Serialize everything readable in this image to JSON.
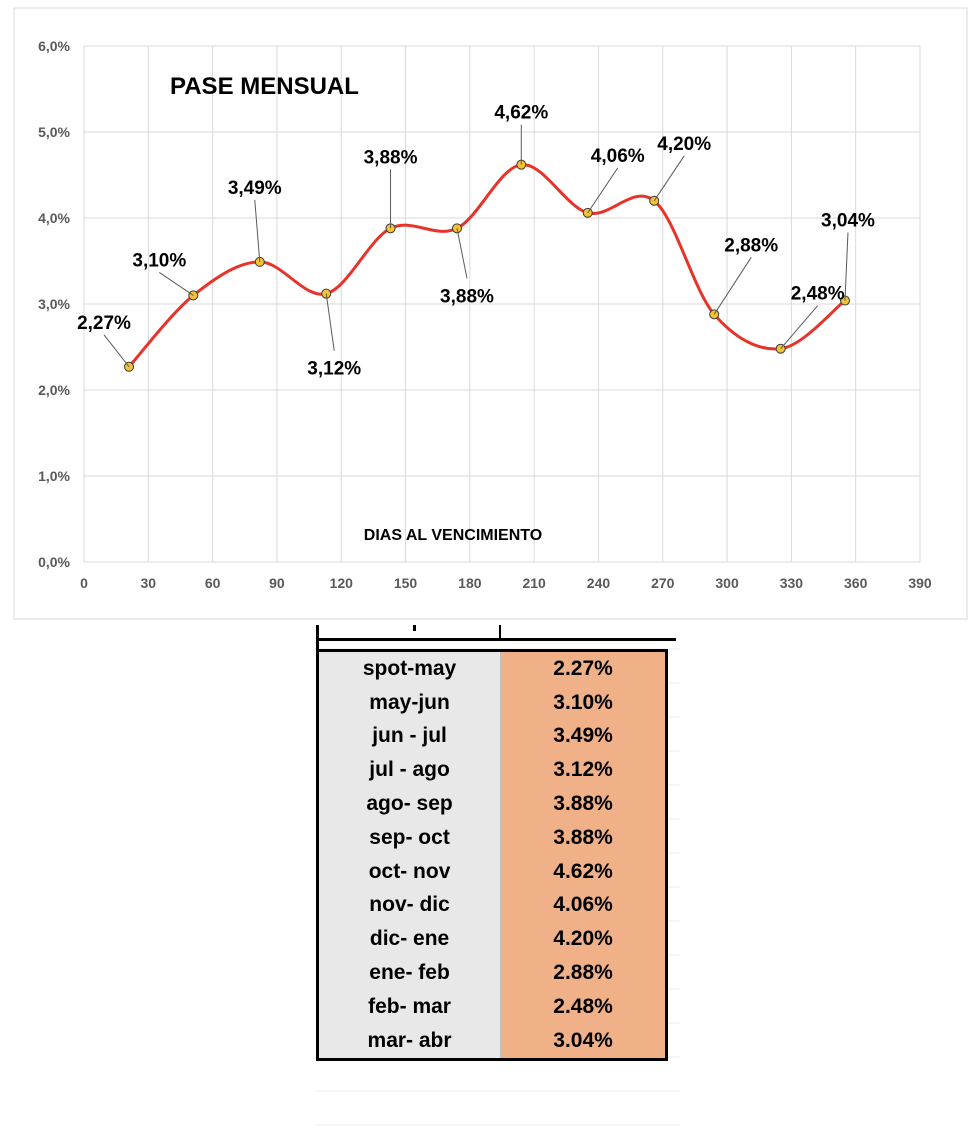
{
  "chart_data": {
    "type": "line",
    "title": "PASE MENSUAL",
    "xlabel": "DIAS AL VENCIMIENTO",
    "ylabel": "",
    "xlim": [
      0,
      390
    ],
    "ylim": [
      0,
      6
    ],
    "x_ticks": [
      0,
      30,
      60,
      90,
      120,
      150,
      180,
      210,
      240,
      270,
      300,
      330,
      360,
      390
    ],
    "y_ticks": [
      0,
      1,
      2,
      3,
      4,
      5,
      6
    ],
    "x_tick_labels": [
      "0",
      "30",
      "60",
      "90",
      "120",
      "150",
      "180",
      "210",
      "240",
      "270",
      "300",
      "330",
      "360",
      "390"
    ],
    "y_tick_labels": [
      "0,0%",
      "1,0%",
      "2,0%",
      "3,0%",
      "4,0%",
      "5,0%",
      "6,0%"
    ],
    "grid": true,
    "line_color": "#e8332a",
    "marker_color": "#f5c232",
    "series": [
      {
        "x": [
          21,
          51,
          82,
          113,
          143,
          174,
          204,
          235,
          266,
          294,
          325,
          355
        ],
        "y": [
          2.27,
          3.1,
          3.49,
          3.12,
          3.88,
          3.88,
          4.62,
          4.06,
          4.2,
          2.88,
          2.48,
          3.04
        ],
        "labels": [
          "2,27%",
          "3,10%",
          "3,49%",
          "3,12%",
          "3,88%",
          "3,88%",
          "4,62%",
          "4,06%",
          "4,20%",
          "2,88%",
          "2,48%",
          "3,04%"
        ]
      }
    ]
  },
  "table": {
    "period_bg": "#e8e8e8",
    "value_bg": "#f0b088",
    "rows": [
      {
        "period": "spot-may",
        "value": "2.27%"
      },
      {
        "period": "may-jun",
        "value": "3.10%"
      },
      {
        "period": "jun - jul",
        "value": "3.49%"
      },
      {
        "period": "jul - ago",
        "value": "3.12%"
      },
      {
        "period": "ago- sep",
        "value": "3.88%"
      },
      {
        "period": "sep- oct",
        "value": "3.88%"
      },
      {
        "period": "oct- nov",
        "value": "4.62%"
      },
      {
        "period": "nov- dic",
        "value": "4.06%"
      },
      {
        "period": "dic- ene",
        "value": "4.20%"
      },
      {
        "period": "ene- feb",
        "value": "2.88%"
      },
      {
        "period": "feb- mar",
        "value": "2.48%"
      },
      {
        "period": "mar- abr",
        "value": "3.04%"
      }
    ]
  }
}
